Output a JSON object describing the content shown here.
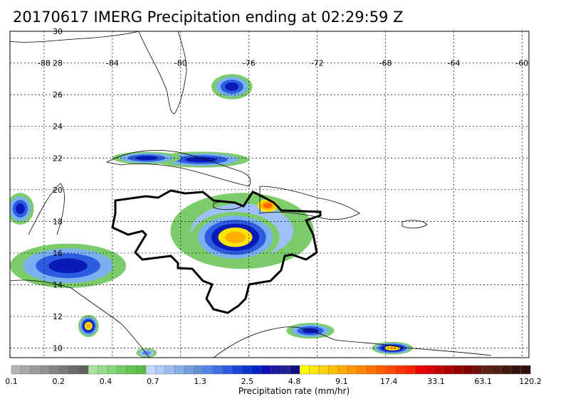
{
  "title": "20170617 IMERG Precipitation ending at 02:29:59 Z",
  "map": {
    "lon_range": [
      -90,
      -59.6
    ],
    "lat_range": [
      9.4,
      30
    ],
    "lon_ticks": [
      -88,
      -84,
      -80,
      -76,
      -72,
      -68,
      -64,
      -60
    ],
    "lon_tick_labels": [
      "-88",
      "-84",
      "-80",
      "-76",
      "-72",
      "-68",
      "-64",
      "-60"
    ],
    "lat_ticks": [
      10,
      12,
      14,
      16,
      18,
      20,
      22,
      24,
      26,
      28,
      30
    ],
    "lat_tick_labels": [
      "10",
      "12",
      "14",
      "16",
      "18",
      "20",
      "22",
      "24",
      "26",
      "28",
      "30"
    ],
    "grid": true,
    "outline_color": "#000000"
  },
  "colorbar": {
    "label": "Precipitation rate (mm/hr)",
    "tick_labels": [
      "0.1",
      "0.2",
      "0.4",
      "0.7",
      "1.3",
      "2.5",
      "4.8",
      "9.1",
      "17.4",
      "33.1",
      "63.1",
      "120.2"
    ],
    "colors": [
      "#b4b4b4",
      "#a8a8a8",
      "#9c9c9c",
      "#909090",
      "#848484",
      "#787878",
      "#6c6c6c",
      "#606060",
      "#a8e4a0",
      "#96dc8c",
      "#84d478",
      "#72cc64",
      "#60c450",
      "#58bc48",
      "#c4d8ff",
      "#b0caf8",
      "#9cbcf0",
      "#88aee8",
      "#74a0e0",
      "#6092d8",
      "#5484ea",
      "#4070e8",
      "#2c5ce0",
      "#1848d8",
      "#0834d0",
      "#0020c8",
      "#1010b0",
      "#1818a0",
      "#202090",
      "#101080",
      "#ffff00",
      "#ffe800",
      "#ffd400",
      "#ffc000",
      "#ffac00",
      "#ff9800",
      "#ff8400",
      "#ff7000",
      "#ff5c00",
      "#ff4800",
      "#ff3400",
      "#ff2000",
      "#ee0000",
      "#d80000",
      "#c20000",
      "#ac0000",
      "#960000",
      "#800000",
      "#701010",
      "#602010",
      "#502010",
      "#401810",
      "#381410",
      "#301008"
    ]
  },
  "storms": [
    {
      "lon": -76.4,
      "lat": 17.4,
      "rx": 4.2,
      "ry": 2.4,
      "intensity": "low"
    },
    {
      "lon": -76.8,
      "lat": 17.0,
      "rx": 2.6,
      "ry": 1.6,
      "intensity": "high"
    },
    {
      "lon": -74.9,
      "lat": 19.0,
      "rx": 0.6,
      "ry": 0.4,
      "intensity": "peak"
    },
    {
      "lon": -86.6,
      "lat": 15.2,
      "rx": 3.4,
      "ry": 1.4,
      "intensity": "mid"
    },
    {
      "lon": -85.4,
      "lat": 11.4,
      "rx": 0.6,
      "ry": 0.7,
      "intensity": "high"
    },
    {
      "lon": -77.0,
      "lat": 26.5,
      "rx": 1.2,
      "ry": 0.8,
      "intensity": "mid"
    },
    {
      "lon": -78.8,
      "lat": 21.9,
      "rx": 2.8,
      "ry": 0.5,
      "intensity": "mid"
    },
    {
      "lon": -82.0,
      "lat": 22.0,
      "rx": 2.0,
      "ry": 0.4,
      "intensity": "mid"
    },
    {
      "lon": -89.4,
      "lat": 18.8,
      "rx": 0.8,
      "ry": 1.0,
      "intensity": "mid"
    },
    {
      "lon": -72.4,
      "lat": 11.1,
      "rx": 1.4,
      "ry": 0.5,
      "intensity": "mid"
    },
    {
      "lon": -67.6,
      "lat": 10.0,
      "rx": 1.2,
      "ry": 0.4,
      "intensity": "high"
    },
    {
      "lon": -82.0,
      "lat": 9.7,
      "rx": 0.6,
      "ry": 0.3,
      "intensity": "low"
    }
  ]
}
